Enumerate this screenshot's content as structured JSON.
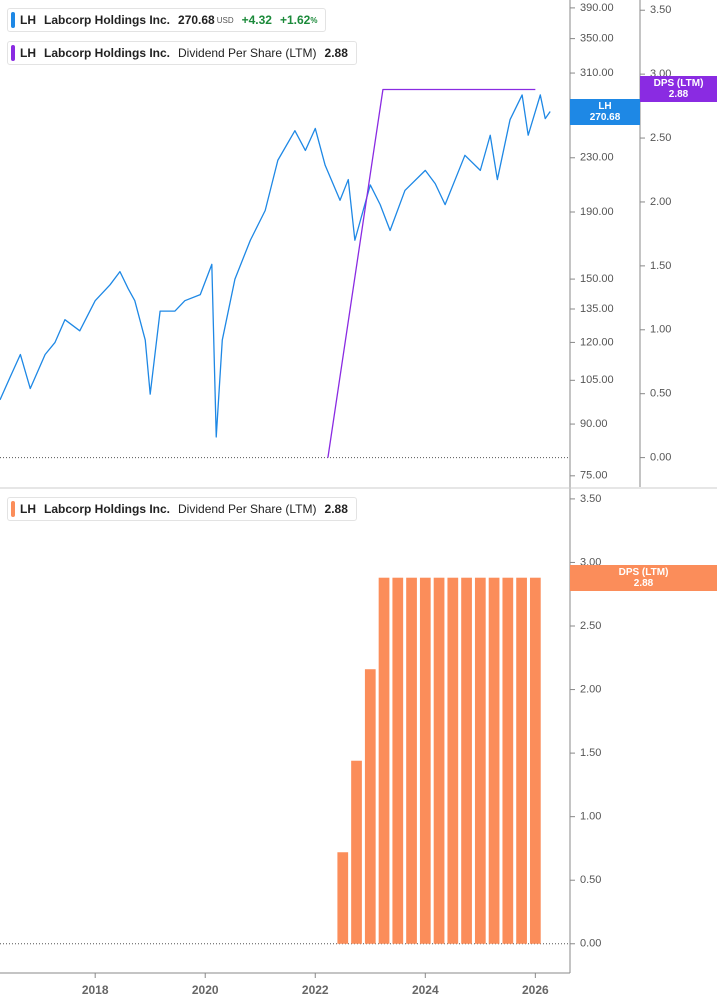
{
  "chart_data": [
    {
      "type": "line",
      "ticker": "LH",
      "company": "Labcorp Holdings Inc.",
      "currency": "USD",
      "change": "+4.32",
      "change_pct": "+1.62",
      "pct_unit": "%",
      "log_y": true,
      "xlim": [
        2016.27,
        2026.63
      ],
      "ylim": [
        72.1,
        401
      ],
      "yticks": [
        {
          "value": 75,
          "label": "75.00"
        },
        {
          "value": 90,
          "label": "90.00"
        },
        {
          "value": 105,
          "label": "105.00"
        },
        {
          "value": 120,
          "label": "120.00"
        },
        {
          "value": 135,
          "label": "135.00"
        },
        {
          "value": 150,
          "label": "150.00"
        },
        {
          "value": 190,
          "label": "190.00"
        },
        {
          "value": 230,
          "label": "230.00"
        },
        {
          "value": 310,
          "label": "310.00"
        },
        {
          "value": 350,
          "label": "350.00"
        },
        {
          "value": 390,
          "label": "390.00"
        }
      ],
      "y2lim": [
        -0.23,
        3.58
      ],
      "y2ticks": [
        {
          "value": 0,
          "label": "0.00"
        },
        {
          "value": 0.5,
          "label": "0.50"
        },
        {
          "value": 1,
          "label": "1.00"
        },
        {
          "value": 1.5,
          "label": "1.50"
        },
        {
          "value": 2,
          "label": "2.00"
        },
        {
          "value": 2.5,
          "label": "2.50"
        },
        {
          "value": 3,
          "label": "3.00"
        },
        {
          "value": 3.5,
          "label": "3.50"
        }
      ],
      "series": [
        {
          "name": "Labcorp Holdings Inc.",
          "color": "#1e88e5",
          "x": [
            2016.27,
            2016.45,
            2016.64,
            2016.82,
            2017.09,
            2017.27,
            2017.45,
            2017.72,
            2018.0,
            2018.27,
            2018.45,
            2018.6,
            2018.72,
            2018.91,
            2019.0,
            2019.18,
            2019.45,
            2019.63,
            2019.91,
            2020.12,
            2020.2,
            2020.31,
            2020.54,
            2020.82,
            2021.09,
            2021.32,
            2021.63,
            2021.82,
            2022.0,
            2022.18,
            2022.45,
            2022.6,
            2022.72,
            2023.0,
            2023.18,
            2023.36,
            2023.63,
            2024.0,
            2024.18,
            2024.36,
            2024.72,
            2025.0,
            2025.18,
            2025.31,
            2025.54,
            2025.76,
            2025.87,
            2026.09,
            2026.18,
            2026.27
          ],
          "values": [
            98,
            106,
            115,
            102,
            115,
            120,
            130,
            125,
            139,
            147,
            154,
            145,
            139,
            121,
            100,
            134,
            134,
            139,
            142,
            158,
            86,
            121,
            150,
            172,
            191,
            228,
            253,
            236,
            255,
            224,
            198,
            213,
            172,
            209,
            195,
            178,
            205,
            220,
            210,
            195,
            232,
            220,
            249,
            213,
            263,
            287,
            249,
            287,
            264,
            270.68
          ]
        },
        {
          "name": "Dividend Per Share (LTM)",
          "short_name": "DPS (LTM)",
          "axis": "y2",
          "color": "#8a2be2",
          "x": [
            2022.23,
            2023.23,
            2026.0
          ],
          "values": [
            0,
            2.88,
            2.88
          ]
        }
      ]
    },
    {
      "type": "bar",
      "xlim": [
        2016.27,
        2026.63
      ],
      "xticks": [
        2018,
        2020,
        2022,
        2024,
        2026
      ],
      "ylim": [
        -0.23,
        3.57
      ],
      "yticks": [
        {
          "value": 0,
          "label": "0.00"
        },
        {
          "value": 0.5,
          "label": "0.50"
        },
        {
          "value": 1,
          "label": "1.00"
        },
        {
          "value": 1.5,
          "label": "1.50"
        },
        {
          "value": 2,
          "label": "2.00"
        },
        {
          "value": 2.5,
          "label": "2.50"
        },
        {
          "value": 3,
          "label": "3.00"
        },
        {
          "value": 3.5,
          "label": "3.50"
        }
      ],
      "series": [
        {
          "name": "Dividend Per Share (LTM)",
          "short_name": "DPS (LTM)",
          "color": "#fb8d5a",
          "x": [
            2022.5,
            2022.75,
            2023.0,
            2023.25,
            2023.5,
            2023.75,
            2024.0,
            2024.25,
            2024.5,
            2024.75,
            2025.0,
            2025.25,
            2025.5,
            2025.75,
            2026.0
          ],
          "values": [
            0.72,
            1.44,
            2.16,
            2.88,
            2.88,
            2.88,
            2.88,
            2.88,
            2.88,
            2.88,
            2.88,
            2.88,
            2.88,
            2.88,
            2.88
          ]
        }
      ]
    }
  ]
}
